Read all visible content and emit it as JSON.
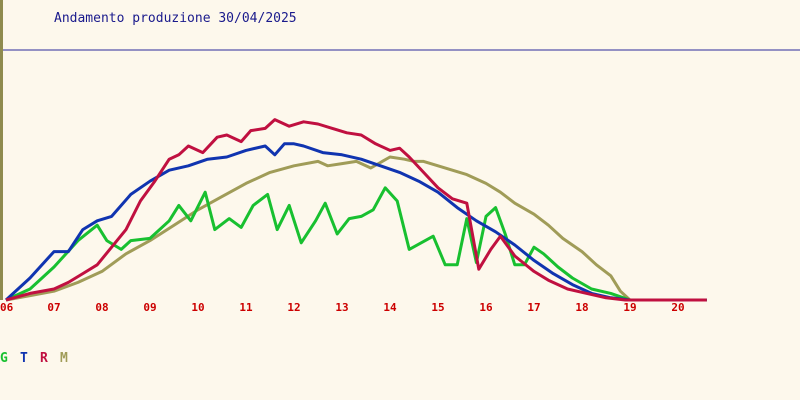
{
  "chart_data": {
    "type": "line",
    "title": "Andamento produzione 30/04/2025",
    "xlabel": "",
    "ylabel": "",
    "x_ticks": [
      "06",
      "07",
      "08",
      "09",
      "10",
      "11",
      "12",
      "13",
      "14",
      "15",
      "16",
      "17",
      "18",
      "19",
      "20"
    ],
    "xlim": [
      6,
      20.6
    ],
    "ylim": [
      0,
      1
    ],
    "grid": false,
    "legend": [
      "G",
      "T",
      "R",
      "M"
    ],
    "legend_position": "bottom-left",
    "series": [
      {
        "name": "G",
        "color": "#18c030",
        "x": [
          6.0,
          6.5,
          7.0,
          7.5,
          7.9,
          8.1,
          8.4,
          8.6,
          9.0,
          9.4,
          9.6,
          9.85,
          10.15,
          10.35,
          10.65,
          10.9,
          11.15,
          11.45,
          11.65,
          11.9,
          12.15,
          12.45,
          12.65,
          12.9,
          13.15,
          13.4,
          13.65,
          13.9,
          14.15,
          14.4,
          14.65,
          14.9,
          15.15,
          15.4,
          15.6,
          15.8,
          16.0,
          16.2,
          16.4,
          16.6,
          16.8,
          17.0,
          17.2,
          17.5,
          17.8,
          18.2,
          18.6,
          19.0,
          19.5,
          20.0,
          20.6
        ],
        "y": [
          0.0,
          0.05,
          0.15,
          0.27,
          0.34,
          0.27,
          0.23,
          0.27,
          0.28,
          0.36,
          0.43,
          0.36,
          0.49,
          0.32,
          0.37,
          0.33,
          0.43,
          0.48,
          0.32,
          0.43,
          0.26,
          0.36,
          0.44,
          0.3,
          0.37,
          0.38,
          0.41,
          0.51,
          0.45,
          0.23,
          0.26,
          0.29,
          0.16,
          0.16,
          0.37,
          0.17,
          0.38,
          0.42,
          0.3,
          0.16,
          0.16,
          0.24,
          0.21,
          0.15,
          0.1,
          0.05,
          0.03,
          0.0,
          0.0,
          0.0,
          0.0
        ]
      },
      {
        "name": "T",
        "color": "#1034b0",
        "x": [
          6.0,
          6.5,
          7.0,
          7.3,
          7.6,
          7.9,
          8.2,
          8.6,
          9.0,
          9.4,
          9.8,
          10.2,
          10.6,
          11.0,
          11.4,
          11.6,
          11.8,
          12.0,
          12.2,
          12.6,
          13.0,
          13.4,
          13.8,
          14.2,
          14.6,
          15.0,
          15.4,
          15.8,
          16.2,
          16.6,
          17.0,
          17.4,
          17.8,
          18.2,
          18.6,
          19.0,
          19.5,
          20.0,
          20.6
        ],
        "y": [
          0.0,
          0.1,
          0.22,
          0.22,
          0.32,
          0.36,
          0.38,
          0.48,
          0.54,
          0.59,
          0.61,
          0.64,
          0.65,
          0.68,
          0.7,
          0.66,
          0.71,
          0.71,
          0.7,
          0.67,
          0.66,
          0.64,
          0.61,
          0.58,
          0.54,
          0.49,
          0.42,
          0.36,
          0.31,
          0.25,
          0.18,
          0.12,
          0.07,
          0.03,
          0.01,
          0.0,
          0.0,
          0.0,
          0.0
        ]
      },
      {
        "name": "R",
        "color": "#c01040",
        "x": [
          6.0,
          6.5,
          7.0,
          7.3,
          7.6,
          7.9,
          8.2,
          8.5,
          8.8,
          9.1,
          9.4,
          9.6,
          9.8,
          10.1,
          10.4,
          10.6,
          10.9,
          11.1,
          11.4,
          11.6,
          11.9,
          12.2,
          12.5,
          12.8,
          13.1,
          13.4,
          13.7,
          14.0,
          14.2,
          14.4,
          14.7,
          15.0,
          15.3,
          15.6,
          15.85,
          16.1,
          16.3,
          16.6,
          17.0,
          17.3,
          17.7,
          18.1,
          18.5,
          18.9,
          19.3,
          19.8,
          20.6
        ],
        "y": [
          0.0,
          0.03,
          0.05,
          0.08,
          0.12,
          0.16,
          0.24,
          0.32,
          0.45,
          0.54,
          0.64,
          0.66,
          0.7,
          0.67,
          0.74,
          0.75,
          0.72,
          0.77,
          0.78,
          0.82,
          0.79,
          0.81,
          0.8,
          0.78,
          0.76,
          0.75,
          0.71,
          0.68,
          0.69,
          0.65,
          0.58,
          0.51,
          0.46,
          0.44,
          0.14,
          0.23,
          0.29,
          0.2,
          0.13,
          0.09,
          0.05,
          0.03,
          0.01,
          0.0,
          0.0,
          0.0,
          0.0
        ]
      },
      {
        "name": "M",
        "color": "#a09c58",
        "x": [
          6.0,
          6.5,
          7.0,
          7.5,
          8.0,
          8.5,
          9.0,
          9.5,
          10.0,
          10.5,
          11.0,
          11.5,
          12.0,
          12.5,
          12.7,
          13.0,
          13.3,
          13.6,
          14.0,
          14.3,
          14.5,
          14.7,
          15.0,
          15.3,
          15.6,
          16.0,
          16.3,
          16.6,
          17.0,
          17.3,
          17.6,
          18.0,
          18.3,
          18.6,
          18.8,
          19.0,
          19.5,
          20.0,
          20.6
        ],
        "y": [
          0.0,
          0.02,
          0.04,
          0.08,
          0.13,
          0.21,
          0.27,
          0.34,
          0.41,
          0.47,
          0.53,
          0.58,
          0.61,
          0.63,
          0.61,
          0.62,
          0.63,
          0.6,
          0.65,
          0.64,
          0.63,
          0.63,
          0.61,
          0.59,
          0.57,
          0.53,
          0.49,
          0.44,
          0.39,
          0.34,
          0.28,
          0.22,
          0.16,
          0.11,
          0.04,
          0.0,
          0.0,
          0.0,
          0.0
        ]
      }
    ]
  }
}
